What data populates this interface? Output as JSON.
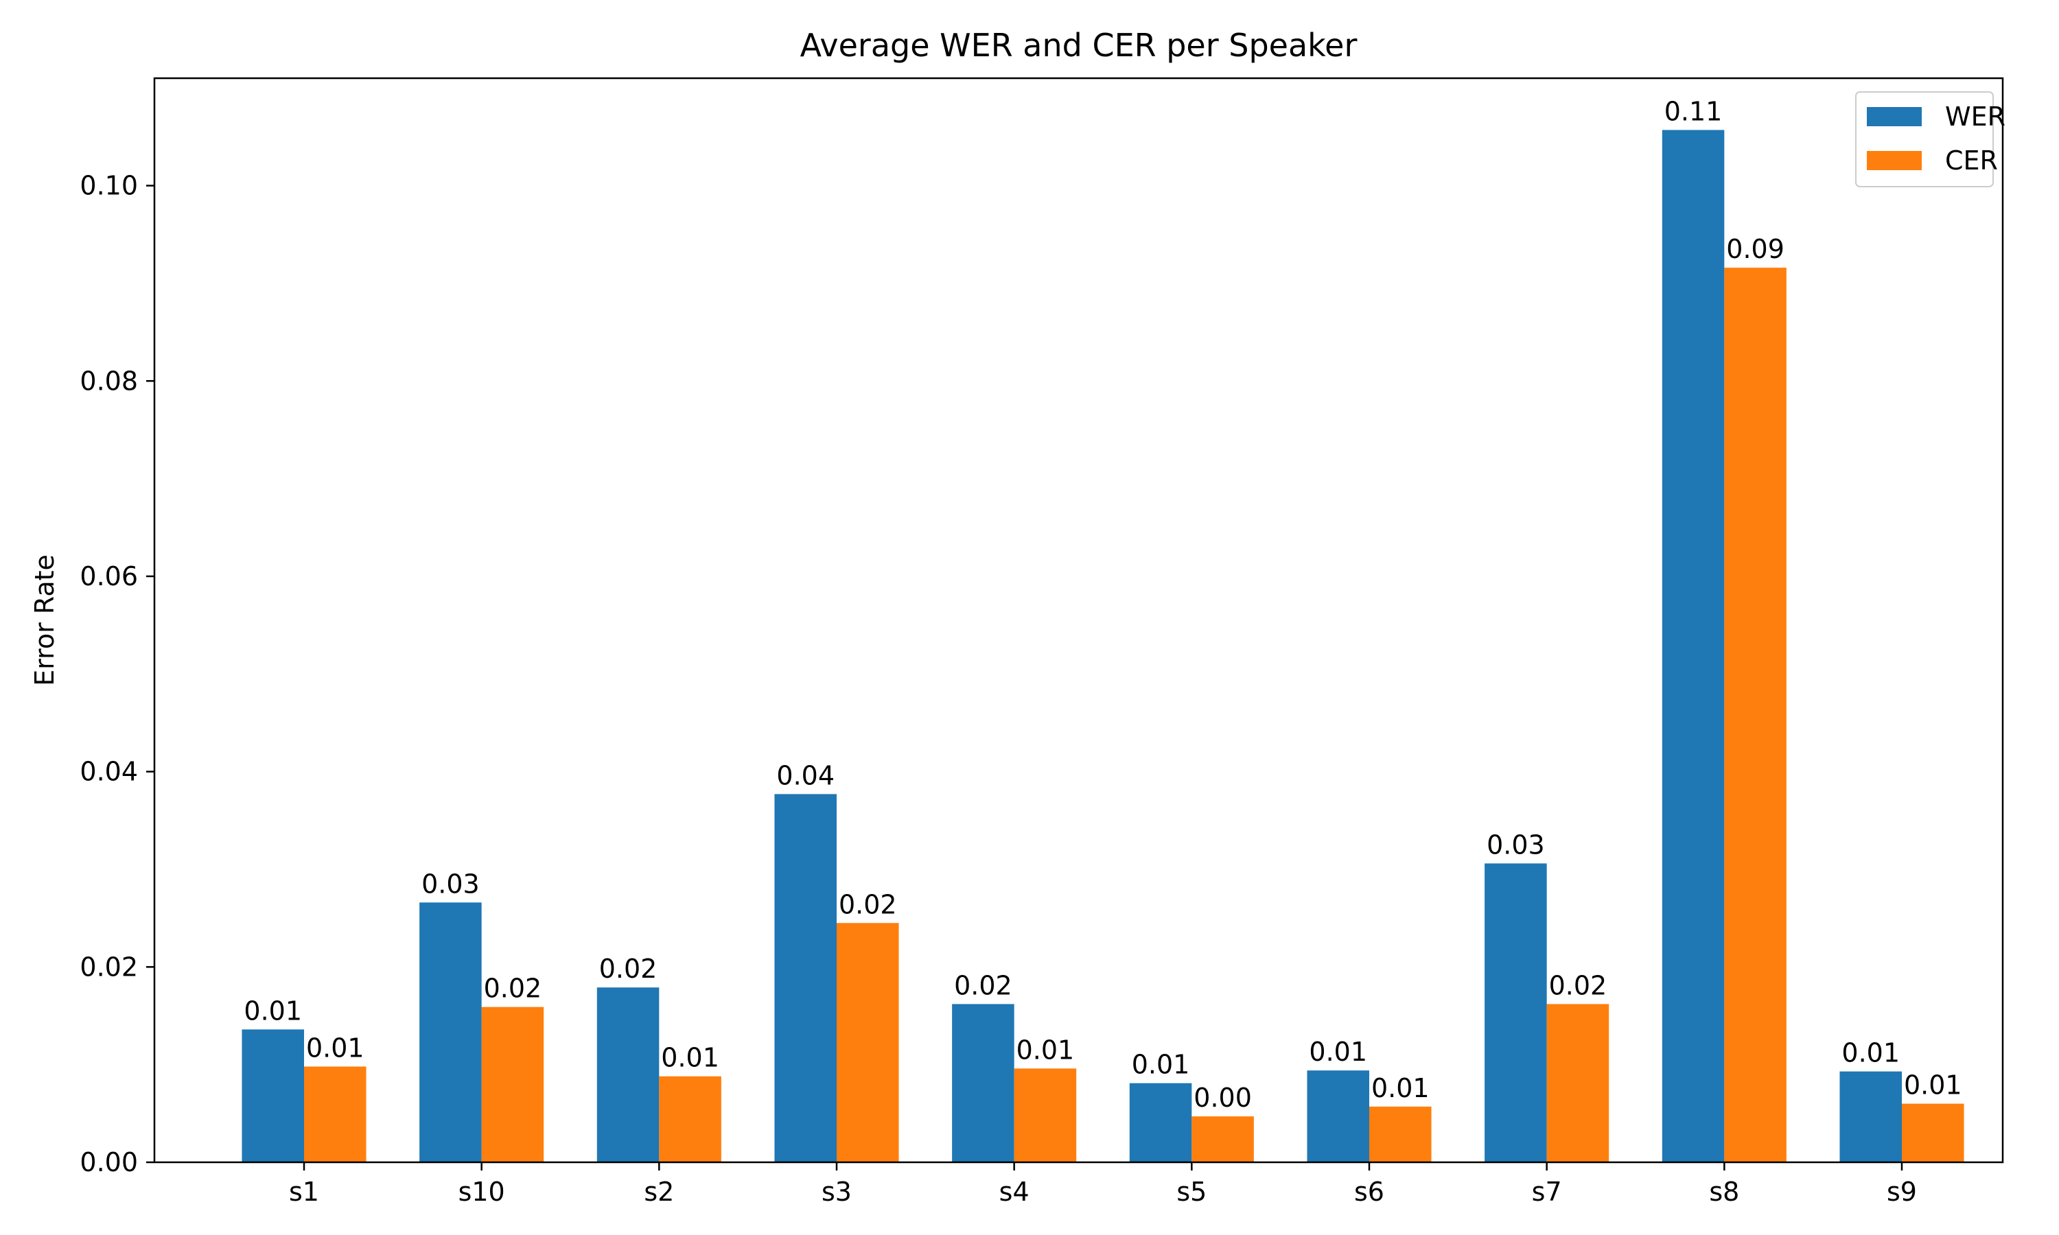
{
  "chart_data": {
    "type": "bar",
    "title": "Average WER and CER per Speaker",
    "xlabel": "",
    "ylabel": "Error Rate",
    "categories": [
      "s1",
      "s10",
      "s2",
      "s3",
      "s4",
      "s5",
      "s6",
      "s7",
      "s8",
      "s9"
    ],
    "series": [
      {
        "name": "WER",
        "color": "#1f77b4",
        "values": [
          0.0136,
          0.0266,
          0.0179,
          0.0377,
          0.0162,
          0.0081,
          0.0094,
          0.0306,
          0.1057,
          0.0093
        ],
        "labels": [
          "0.01",
          "0.03",
          "0.02",
          "0.04",
          "0.02",
          "0.01",
          "0.01",
          "0.03",
          "0.11",
          "0.01"
        ]
      },
      {
        "name": "CER",
        "color": "#ff7f0e",
        "values": [
          0.0098,
          0.0159,
          0.0088,
          0.0245,
          0.0096,
          0.0047,
          0.0057,
          0.0162,
          0.0916,
          0.006
        ],
        "labels": [
          "0.01",
          "0.02",
          "0.01",
          "0.02",
          "0.01",
          "0.00",
          "0.01",
          "0.02",
          "0.09",
          "0.01"
        ]
      }
    ],
    "ylim": [
      0,
      0.111
    ],
    "yticks": [
      "0.00",
      "0.02",
      "0.04",
      "0.06",
      "0.08",
      "0.10"
    ],
    "ytick_values": [
      0,
      0.02,
      0.04,
      0.06,
      0.08,
      0.1
    ],
    "grid": false,
    "legend_position": "top-right"
  }
}
